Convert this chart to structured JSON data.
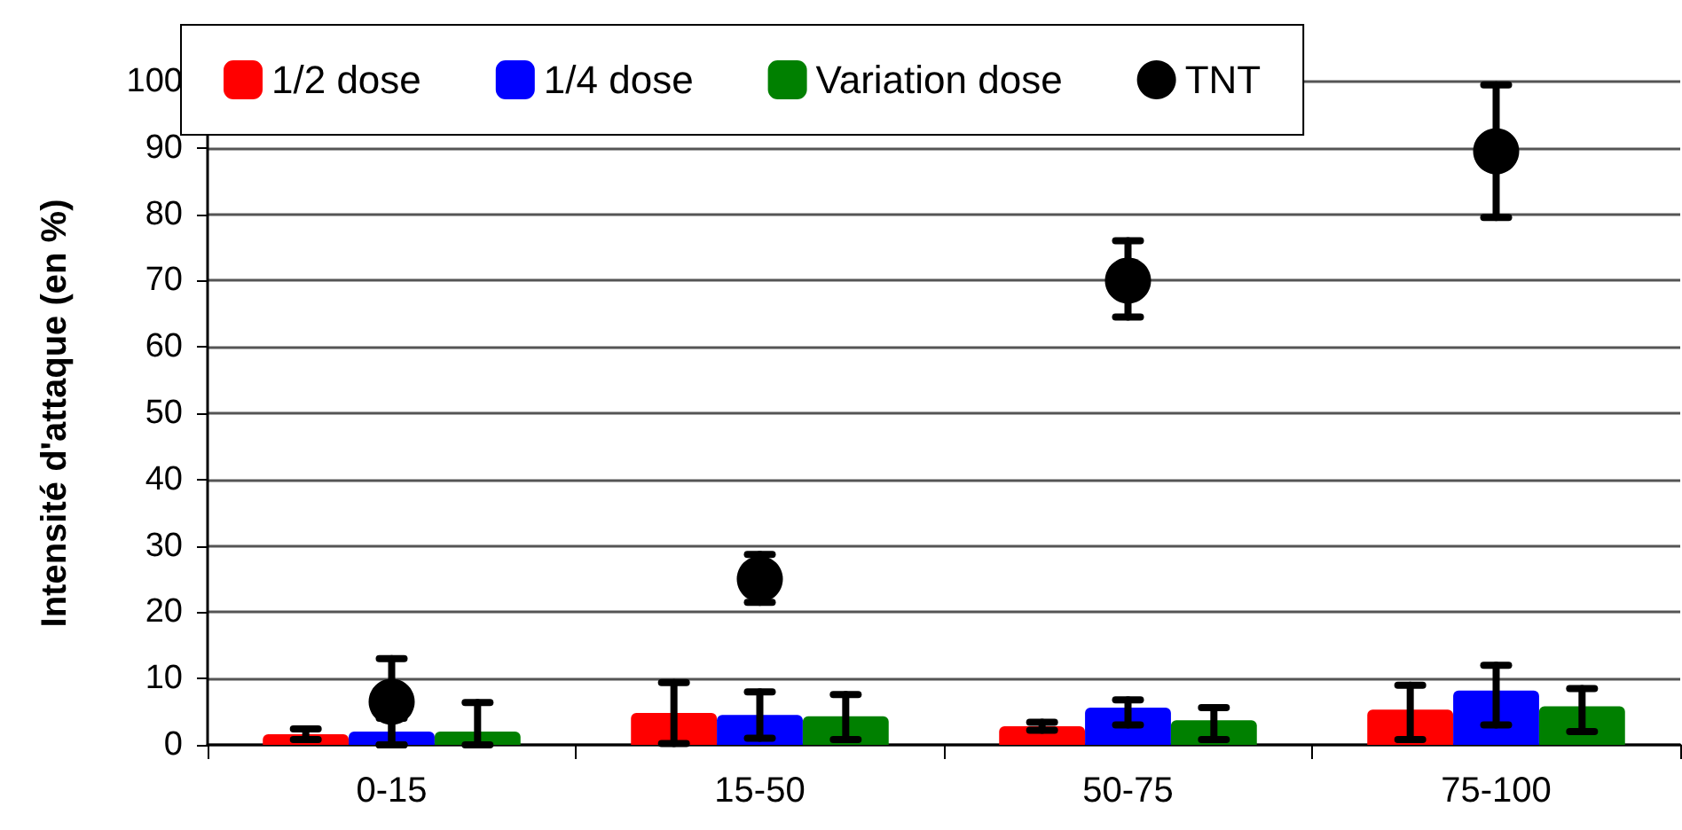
{
  "chart_data": {
    "type": "bar",
    "ylabel": "Intensité d'attaque (en %)",
    "categories": [
      "0-15",
      "15-50",
      "50-75",
      "75-100"
    ],
    "series": [
      {
        "name": "1/2 dose",
        "color": "#ff0000",
        "values": [
          1.6,
          4.8,
          2.8,
          5.3
        ],
        "errors": [
          [
            0.8,
            2.4
          ],
          [
            0.2,
            9.4
          ],
          [
            2.2,
            3.4
          ],
          [
            0.8,
            9
          ]
        ]
      },
      {
        "name": "1/4 dose",
        "color": "#0000ff",
        "values": [
          2,
          4.5,
          5.6,
          8.2
        ],
        "errors": [
          [
            0,
            4
          ],
          [
            1,
            8
          ],
          [
            3,
            6.8
          ],
          [
            3,
            12
          ]
        ]
      },
      {
        "name": "Variation dose",
        "color": "#008000",
        "values": [
          2,
          4.3,
          3.7,
          5.8
        ],
        "errors": [
          [
            0,
            6.4
          ],
          [
            0.8,
            7.6
          ],
          [
            0.8,
            5.6
          ],
          [
            2,
            8.5
          ]
        ]
      },
      {
        "name": "TNT",
        "type": "scatter",
        "color": "#000000",
        "marker": "circle",
        "x": [
          "0-15",
          "15-50",
          "50-75",
          "75-100"
        ],
        "values": [
          6.5,
          25,
          70,
          89.5
        ],
        "errors": [
          [
            0,
            13
          ],
          [
            21.5,
            28.7
          ],
          [
            64.5,
            76
          ],
          [
            79.5,
            99.5
          ]
        ]
      }
    ],
    "ylim": [
      0,
      100
    ],
    "yticks": [
      0,
      10,
      20,
      30,
      40,
      50,
      60,
      70,
      80,
      90,
      100
    ],
    "grid": "y",
    "legend": "top"
  }
}
